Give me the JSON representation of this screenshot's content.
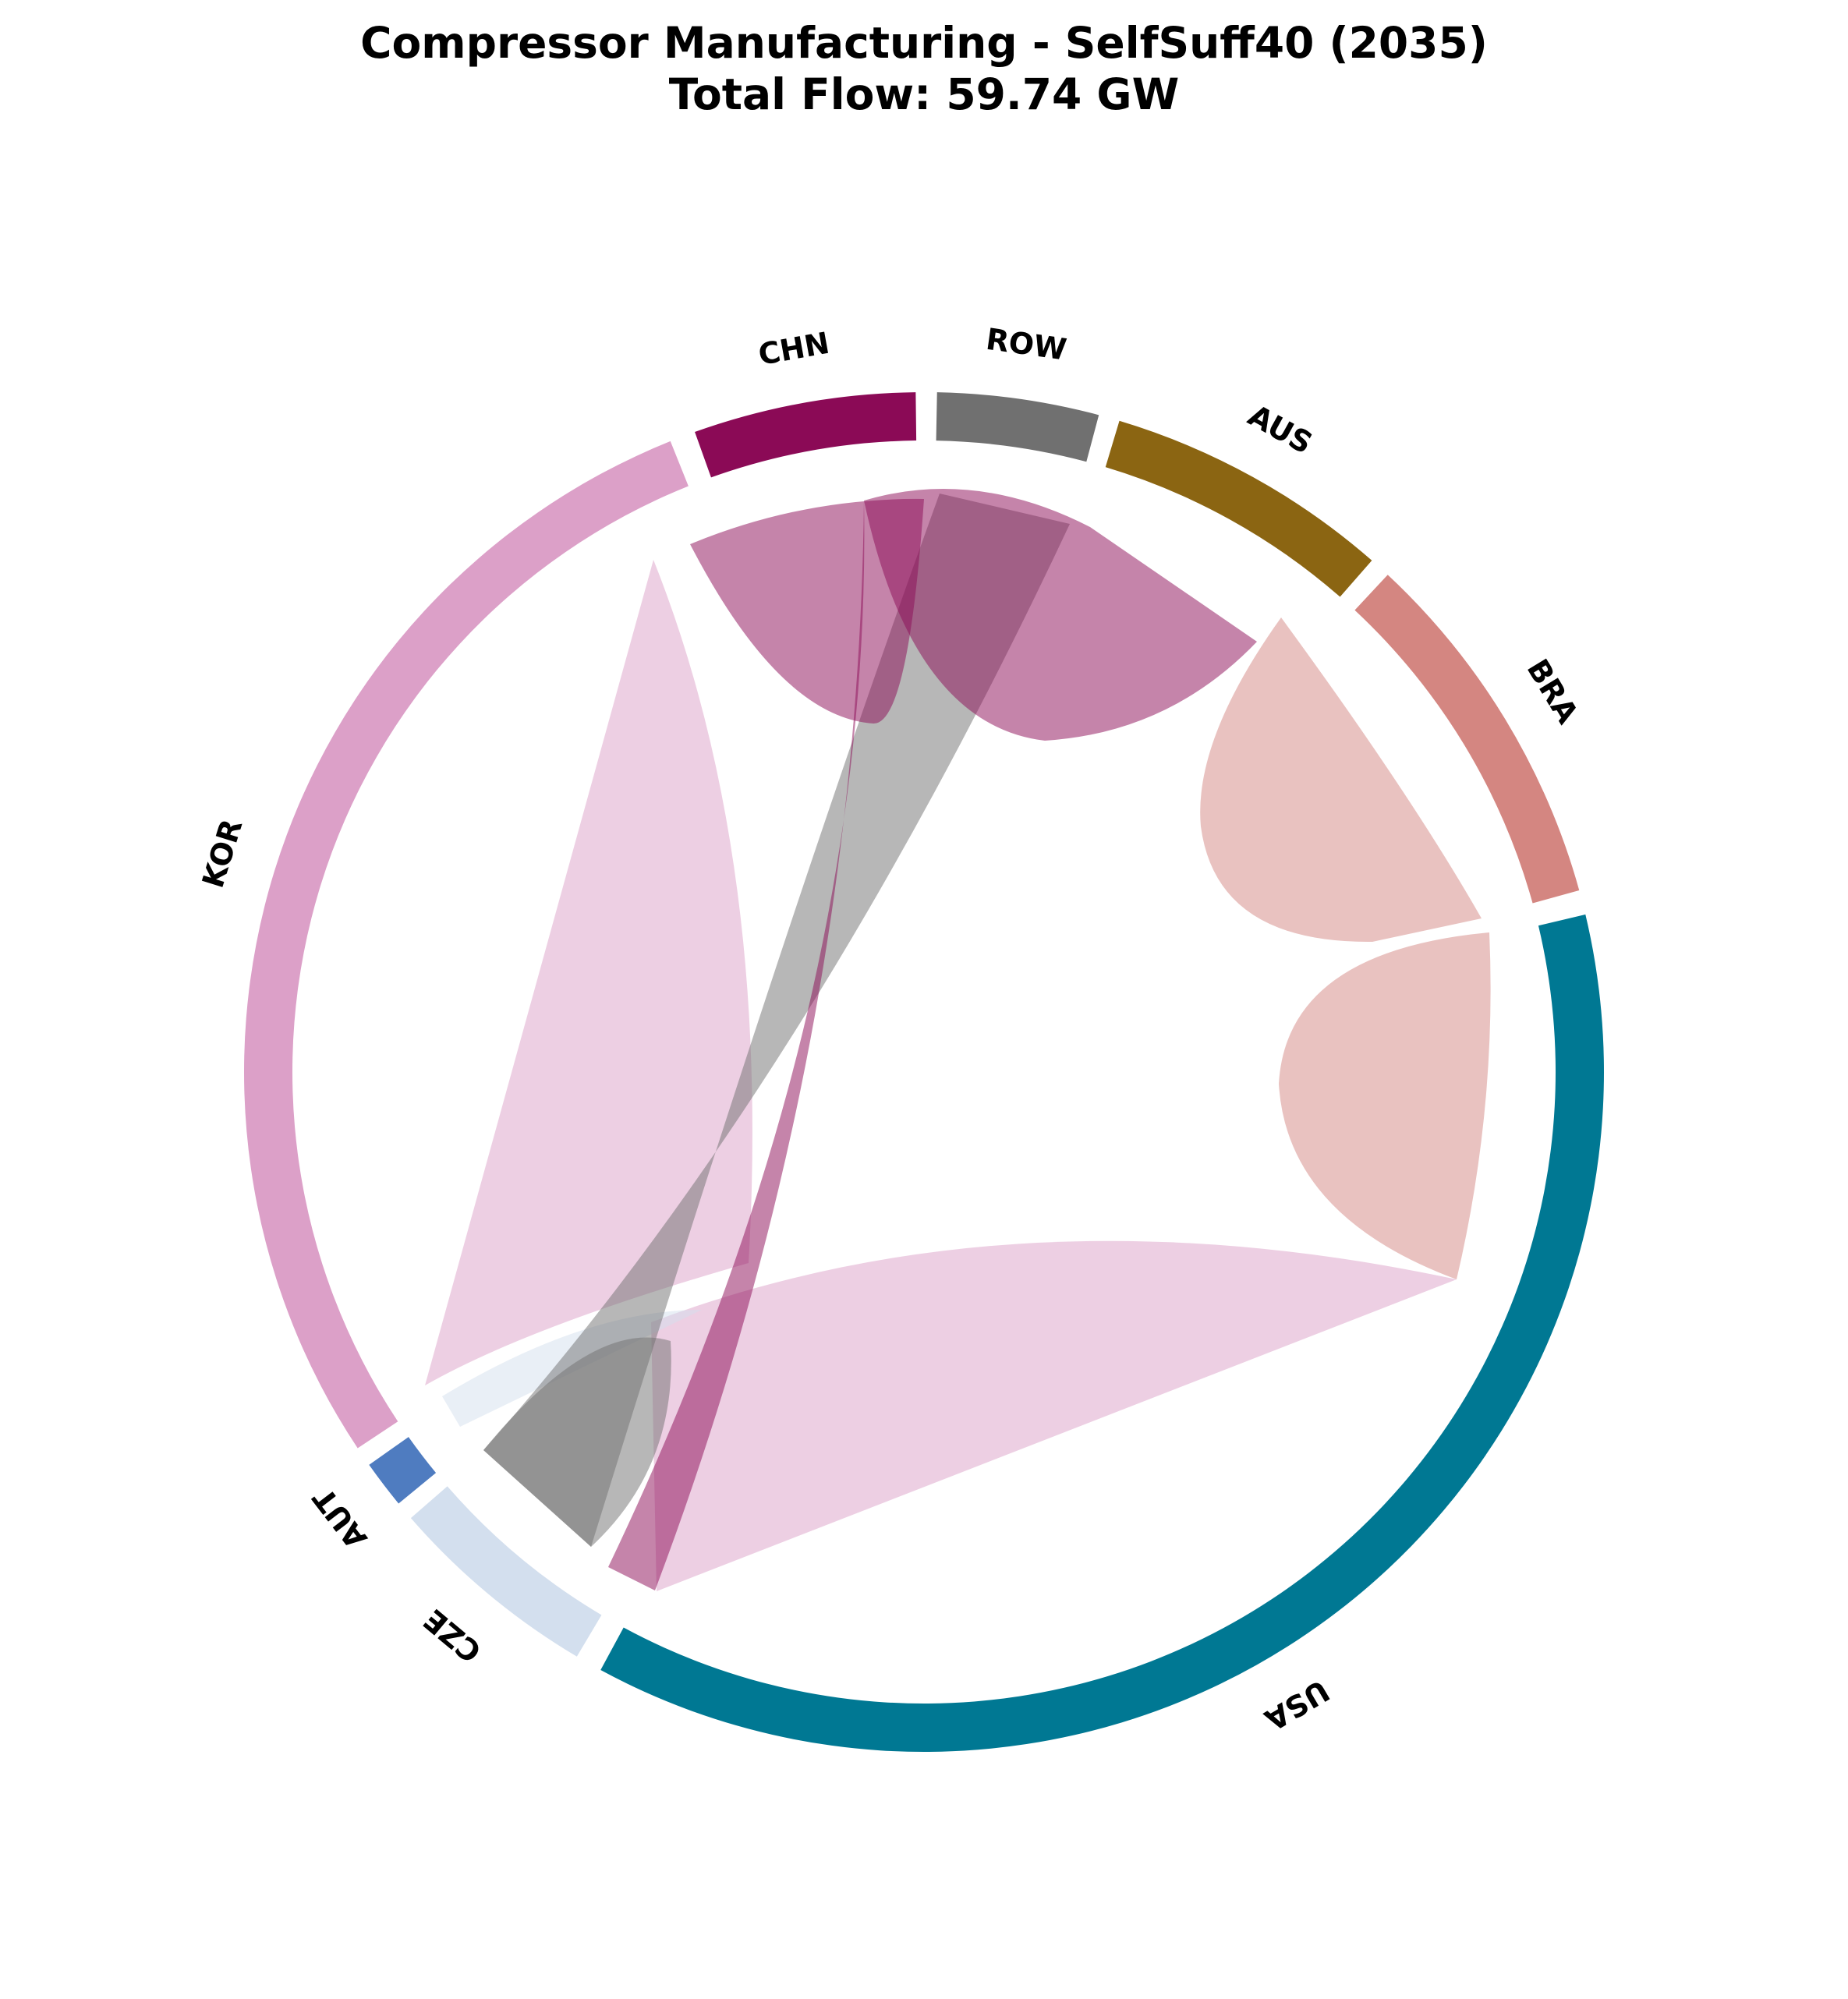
{
  "chart_data": {
    "type": "chord",
    "title": "Compressor Manufacturing - SelfSuff40 (2035)",
    "subtitle": "Total Flow: 59.74 GW",
    "nodes": [
      {
        "name": "USA",
        "color": "#007893"
      },
      {
        "name": "BRA",
        "color": "#d48681"
      },
      {
        "name": "AUS",
        "color": "#8b6512"
      },
      {
        "name": "ROW",
        "color": "#707070"
      },
      {
        "name": "CHN",
        "color": "#8b0a56"
      },
      {
        "name": "KOR",
        "color": "#dca0c8"
      },
      {
        "name": "AUT",
        "color": "#4f7cc0"
      },
      {
        "name": "CZE",
        "color": "#d3dfee"
      }
    ],
    "flows": [
      {
        "source": "BRA",
        "target": "BRA",
        "color": "#d48681"
      },
      {
        "source": "BRA",
        "target": "USA",
        "color": "#d48681"
      },
      {
        "source": "CHN",
        "target": "CHN",
        "color": "#8b0a56"
      },
      {
        "source": "CHN",
        "target": "AUS",
        "color": "#8b0a56"
      },
      {
        "source": "CHN",
        "target": "USA",
        "color": "#8b0a56"
      },
      {
        "source": "ROW",
        "target": "CZE",
        "color": "#707070"
      },
      {
        "source": "KOR",
        "target": "KOR",
        "color": "#dca0c8"
      },
      {
        "source": "KOR",
        "target": "USA",
        "color": "#dca0c8"
      },
      {
        "source": "AUT",
        "target": "USA",
        "color": "#d3dfee"
      },
      {
        "source": "CZE",
        "target": "CZE",
        "color": "#a0a8b0"
      }
    ]
  }
}
